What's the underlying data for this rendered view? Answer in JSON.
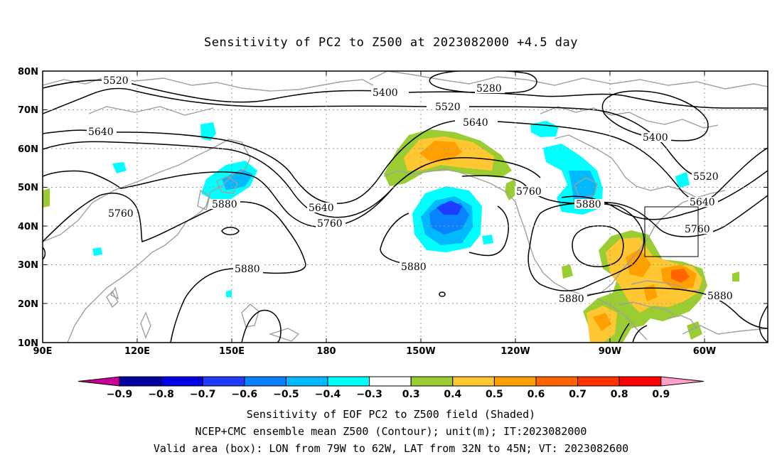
{
  "title": "Sensitivity of PC2 to Z500 at 2023082000 +4.5 day",
  "axes": {
    "lat_ticks": [
      "80N",
      "70N",
      "60N",
      "50N",
      "40N",
      "30N",
      "20N",
      "10N"
    ],
    "lon_ticks": [
      "90E",
      "120E",
      "150E",
      "180",
      "150W",
      "120W",
      "90W",
      "60W"
    ]
  },
  "contour_labels": [
    {
      "text": "5520",
      "key": "c1"
    },
    {
      "text": "5400",
      "key": "c2"
    },
    {
      "text": "5280",
      "key": "c3"
    },
    {
      "text": "5520",
      "key": "c4"
    },
    {
      "text": "5640",
      "key": "c5"
    },
    {
      "text": "5640",
      "key": "c6"
    },
    {
      "text": "5400",
      "key": "c7"
    },
    {
      "text": "5520",
      "key": "c8"
    },
    {
      "text": "5640",
      "key": "c9"
    },
    {
      "text": "5760",
      "key": "c10"
    },
    {
      "text": "5880",
      "key": "c11"
    },
    {
      "text": "5640",
      "key": "c12"
    },
    {
      "text": "5760",
      "key": "c13"
    },
    {
      "text": "5760",
      "key": "c14"
    },
    {
      "text": "5880",
      "key": "c15"
    },
    {
      "text": "5760",
      "key": "c16"
    },
    {
      "text": "5880",
      "key": "c17"
    },
    {
      "text": "5880",
      "key": "c18"
    },
    {
      "text": "5880",
      "key": "c19"
    },
    {
      "text": "5880",
      "key": "c20"
    }
  ],
  "colorbar": {
    "labels": [
      "-0.9",
      "-0.8",
      "-0.7",
      "-0.6",
      "-0.5",
      "-0.4",
      "-0.3",
      "0.3",
      "0.4",
      "0.5",
      "0.6",
      "0.7",
      "0.8",
      "0.9"
    ],
    "colors": [
      "#0000a0",
      "#0000e6",
      "#1e3cff",
      "#0a82ff",
      "#00b9ff",
      "#00ffff",
      "#ffffff",
      "#9acd32",
      "#ffc832",
      "#ffa000",
      "#ff6400",
      "#ff3200",
      "#ff0000"
    ],
    "low_end": "#c80096",
    "high_end": "#ffa0c8"
  },
  "valid_box": {
    "lon_from": "79W",
    "lon_to": "62W",
    "lat_from": "32N",
    "lat_to": "45N"
  },
  "footer": {
    "line1": "Sensitivity of EOF PC2 to Z500 field (Shaded)",
    "line2": "NCEP+CMC ensemble mean Z500 (Contour); unit(m); IT:2023082000",
    "line3": "Valid area (box): LON from 79W to 62W, LAT from 32N to 45N; VT: 2023082600"
  }
}
